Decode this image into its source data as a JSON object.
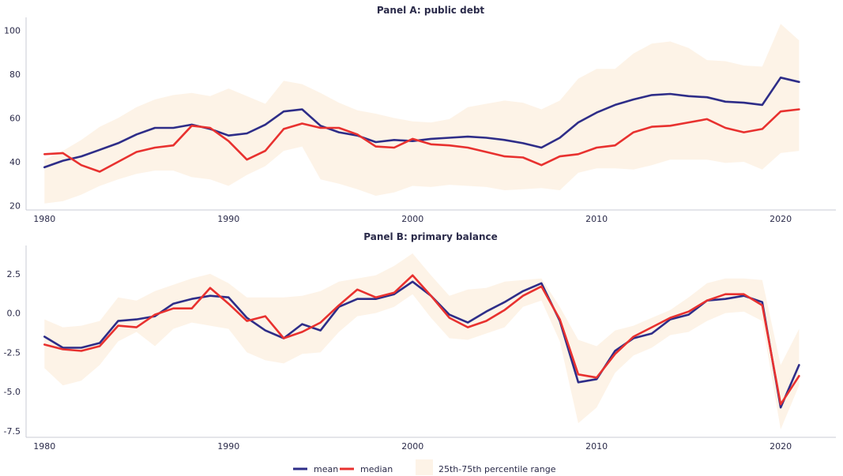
{
  "chart_data": [
    {
      "type": "line",
      "title": "Panel A: public debt",
      "xlabel": "",
      "ylabel": "",
      "xlim": [
        1979,
        2023
      ],
      "ylim": [
        18,
        106
      ],
      "yticks": [
        20,
        40,
        60,
        80,
        100
      ],
      "ytick_labels": [
        "20",
        "40",
        "60",
        "80",
        "100"
      ],
      "xticks": [
        1980,
        1990,
        2000,
        2010,
        2020
      ],
      "xtick_labels": [
        "1980",
        "1990",
        "2000",
        "2010",
        "2020"
      ],
      "grid": false,
      "x": [
        1980,
        1981,
        1982,
        1983,
        1984,
        1985,
        1986,
        1987,
        1988,
        1989,
        1990,
        1991,
        1992,
        1993,
        1994,
        1995,
        1996,
        1997,
        1998,
        1999,
        2000,
        2001,
        2002,
        2003,
        2004,
        2005,
        2006,
        2007,
        2008,
        2009,
        2010,
        2011,
        2012,
        2013,
        2014,
        2015,
        2016,
        2017,
        2018,
        2019,
        2020,
        2021
      ],
      "series": [
        {
          "name": "mean",
          "color": "#2e2d88",
          "values": [
            37.5,
            40.5,
            42.5,
            45.5,
            48.5,
            52.5,
            55.5,
            55.5,
            57.0,
            55.0,
            52.0,
            53.0,
            57.0,
            63.0,
            64.0,
            56.5,
            53.5,
            52.0,
            49.0,
            50.0,
            49.5,
            50.5,
            51.0,
            51.5,
            51.0,
            50.0,
            48.5,
            46.5,
            51.0,
            58.0,
            62.5,
            66.0,
            68.5,
            70.5,
            71.0,
            70.0,
            69.5,
            67.5,
            67.0,
            66.0,
            78.5,
            76.5
          ]
        },
        {
          "name": "median",
          "color": "#e8312f",
          "values": [
            43.5,
            44.0,
            38.5,
            35.5,
            40.0,
            44.5,
            46.5,
            47.5,
            56.5,
            55.5,
            49.5,
            41.0,
            45.0,
            55.0,
            57.5,
            55.5,
            55.5,
            52.5,
            47.0,
            46.5,
            50.5,
            48.0,
            47.5,
            46.5,
            44.5,
            42.5,
            42.0,
            38.5,
            42.5,
            43.5,
            46.5,
            47.5,
            53.5,
            56.0,
            56.5,
            58.0,
            59.5,
            55.5,
            53.5,
            55.0,
            63.0,
            64.0
          ]
        }
      ],
      "band": {
        "name": "25th-75th percentile range",
        "color": "#fdf3e7",
        "low": [
          21.0,
          22.0,
          25.0,
          29.0,
          32.0,
          34.5,
          36.0,
          36.0,
          33.0,
          32.0,
          29.0,
          34.0,
          38.0,
          45.0,
          47.0,
          32.0,
          30.0,
          27.5,
          24.5,
          26.0,
          29.0,
          28.5,
          29.5,
          29.0,
          28.5,
          27.0,
          27.5,
          28.0,
          27.0,
          35.0,
          37.0,
          37.0,
          36.5,
          38.5,
          41.0,
          41.0,
          41.0,
          39.5,
          40.0,
          36.5,
          44.0,
          45.0
        ],
        "high": [
          41.0,
          45.0,
          50.0,
          56.0,
          60.0,
          65.0,
          68.5,
          70.5,
          71.5,
          70.0,
          73.5,
          70.0,
          66.5,
          77.0,
          75.5,
          71.5,
          67.0,
          63.5,
          62.0,
          60.0,
          58.5,
          58.0,
          59.5,
          65.0,
          66.5,
          68.0,
          67.0,
          64.0,
          68.0,
          78.0,
          82.5,
          82.5,
          89.5,
          94.0,
          95.0,
          92.0,
          86.5,
          86.0,
          84.0,
          83.5,
          103.0,
          95.5
        ]
      }
    },
    {
      "type": "line",
      "title": "Panel B: primary balance",
      "xlabel": "",
      "ylabel": "",
      "xlim": [
        1979,
        2023
      ],
      "ylim": [
        -7.9,
        4.3
      ],
      "yticks": [
        -7.5,
        -5.0,
        -2.5,
        0.0,
        2.5
      ],
      "ytick_labels": [
        "-7.5",
        "-5.0",
        "-2.5",
        "0.0",
        "2.5"
      ],
      "xticks": [
        1980,
        1990,
        2000,
        2010,
        2020
      ],
      "xtick_labels": [
        "1980",
        "1990",
        "2000",
        "2010",
        "2020"
      ],
      "grid": false,
      "x": [
        1980,
        1981,
        1982,
        1983,
        1984,
        1985,
        1986,
        1987,
        1988,
        1989,
        1990,
        1991,
        1992,
        1993,
        1994,
        1995,
        1996,
        1997,
        1998,
        1999,
        2000,
        2001,
        2002,
        2003,
        2004,
        2005,
        2006,
        2007,
        2008,
        2009,
        2010,
        2011,
        2012,
        2013,
        2014,
        2015,
        2016,
        2017,
        2018,
        2019,
        2020,
        2021
      ],
      "series": [
        {
          "name": "mean",
          "color": "#2e2d88",
          "values": [
            -1.5,
            -2.2,
            -2.2,
            -1.9,
            -0.5,
            -0.4,
            -0.2,
            0.6,
            0.9,
            1.1,
            1.0,
            -0.3,
            -1.1,
            -1.6,
            -0.7,
            -1.1,
            0.4,
            0.9,
            0.9,
            1.2,
            2.0,
            1.1,
            -0.1,
            -0.6,
            0.1,
            0.7,
            1.4,
            1.9,
            -0.5,
            -4.4,
            -4.2,
            -2.4,
            -1.6,
            -1.3,
            -0.4,
            -0.1,
            0.8,
            0.9,
            1.1,
            0.7,
            -6.0,
            -3.3
          ]
        },
        {
          "name": "median",
          "color": "#e8312f",
          "values": [
            -2.0,
            -2.3,
            -2.4,
            -2.1,
            -0.8,
            -0.9,
            -0.1,
            0.3,
            0.3,
            1.6,
            0.6,
            -0.5,
            -0.2,
            -1.6,
            -1.2,
            -0.6,
            0.5,
            1.5,
            1.0,
            1.3,
            2.4,
            1.1,
            -0.3,
            -0.9,
            -0.5,
            0.2,
            1.1,
            1.7,
            -0.4,
            -3.9,
            -4.1,
            -2.6,
            -1.5,
            -0.9,
            -0.3,
            0.1,
            0.8,
            1.2,
            1.2,
            0.5,
            -5.8,
            -4.0
          ]
        }
      ],
      "band": {
        "name": "25th-75th percentile range",
        "color": "#fdf3e7",
        "low": [
          -3.5,
          -4.6,
          -4.3,
          -3.3,
          -1.8,
          -1.2,
          -2.1,
          -1.0,
          -0.6,
          -0.8,
          -1.0,
          -2.5,
          -3.0,
          -3.2,
          -2.6,
          -2.5,
          -1.2,
          -0.2,
          0.0,
          0.4,
          1.2,
          -0.3,
          -1.6,
          -1.7,
          -1.3,
          -0.9,
          0.4,
          0.8,
          -1.8,
          -7.0,
          -6.0,
          -3.8,
          -2.7,
          -2.2,
          -1.4,
          -1.2,
          -0.5,
          0.0,
          0.1,
          -0.5,
          -7.4,
          -4.6
        ],
        "high": [
          -0.4,
          -0.9,
          -0.8,
          -0.5,
          1.0,
          0.8,
          1.4,
          1.8,
          2.2,
          2.5,
          1.9,
          1.0,
          1.0,
          1.0,
          1.1,
          1.4,
          2.0,
          2.2,
          2.4,
          3.0,
          3.8,
          2.4,
          1.1,
          1.5,
          1.6,
          2.0,
          2.1,
          2.2,
          0.4,
          -1.7,
          -2.1,
          -1.1,
          -0.8,
          -0.3,
          0.2,
          1.0,
          1.9,
          2.2,
          2.2,
          2.1,
          -3.3,
          -1.0
        ]
      }
    }
  ],
  "legend": {
    "items": [
      {
        "label": "mean",
        "color": "#2e2d88",
        "kind": "line"
      },
      {
        "label": "median",
        "color": "#e8312f",
        "kind": "line"
      },
      {
        "label": "25th-75th percentile range",
        "color": "#fdf3e7",
        "kind": "band"
      }
    ]
  }
}
